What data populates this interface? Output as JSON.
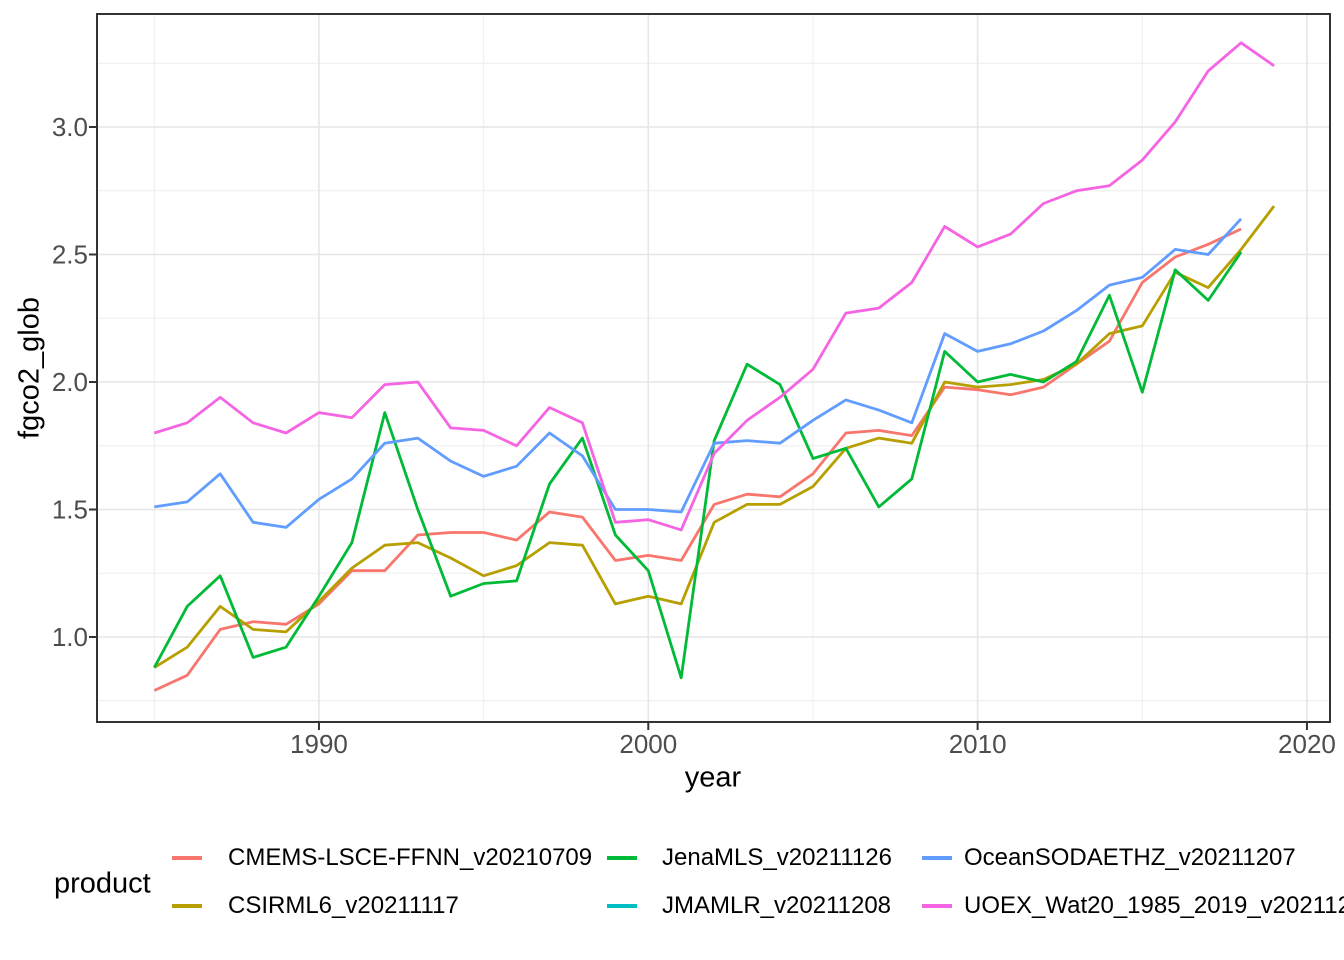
{
  "chart_data": {
    "type": "line",
    "title": "",
    "xlabel": "year",
    "ylabel": "fgco2_glob",
    "x_ticks": [
      1990,
      2000,
      2010,
      2020
    ],
    "x_tick_labels": [
      "1990",
      "2000",
      "2010",
      "2020"
    ],
    "x_minor_gridlines": [
      1985,
      1995,
      2005,
      2015
    ],
    "y_ticks": [
      1.0,
      1.5,
      2.0,
      2.5,
      3.0
    ],
    "y_tick_labels": [
      "1.0",
      "1.5",
      "2.0",
      "2.5",
      "3.0"
    ],
    "y_minor_gridlines": [
      0.75,
      1.25,
      1.75,
      2.25,
      2.75,
      3.25
    ],
    "x_range_years": [
      1983.8,
      2020.7
    ],
    "y_range": [
      0.69,
      3.45
    ],
    "grid": true,
    "legend": {
      "title": "product",
      "position": "bottom"
    },
    "start_year": 1985,
    "series": [
      {
        "name": "CMEMS-LSCE-FFNN_v20210709",
        "color": "#F8766D",
        "start_year": 1985,
        "values": [
          0.79,
          0.85,
          1.03,
          1.06,
          1.05,
          1.13,
          1.26,
          1.26,
          1.4,
          1.41,
          1.41,
          1.38,
          1.49,
          1.47,
          1.3,
          1.32,
          1.3,
          1.52,
          1.56,
          1.55,
          1.64,
          1.8,
          1.81,
          1.79,
          1.98,
          1.97,
          1.95,
          1.98,
          2.07,
          2.16,
          2.39,
          2.49,
          2.54,
          2.6
        ]
      },
      {
        "name": "CSIRML6_v20211117",
        "color": "#B79F00",
        "start_year": 1985,
        "values": [
          0.88,
          0.96,
          1.12,
          1.03,
          1.02,
          1.14,
          1.27,
          1.36,
          1.37,
          1.31,
          1.24,
          1.28,
          1.37,
          1.36,
          1.13,
          1.16,
          1.13,
          1.45,
          1.52,
          1.52,
          1.59,
          1.74,
          1.78,
          1.76,
          2.0,
          1.98,
          1.99,
          2.01,
          2.07,
          2.19,
          2.22,
          2.43,
          2.37,
          2.52,
          2.69
        ]
      },
      {
        "name": "JenaMLS_v20211126",
        "color": "#00BA38",
        "start_year": 1985,
        "values": [
          0.88,
          1.12,
          1.24,
          0.92,
          0.96,
          1.16,
          1.37,
          1.88,
          1.5,
          1.16,
          1.21,
          1.22,
          1.6,
          1.78,
          1.4,
          1.26,
          0.84,
          1.77,
          2.07,
          1.99,
          1.7,
          1.74,
          1.51,
          1.62,
          2.12,
          2.0,
          2.03,
          2.0,
          2.08,
          2.34,
          1.96,
          2.44,
          2.32,
          2.51
        ]
      },
      {
        "name": "JMAMLR_v20211208",
        "color": "#00BFC4",
        "start_year": 1985,
        "values": [],
        "visible_in_plot": false
      },
      {
        "name": "OceanSODAETHZ_v20211207",
        "color": "#619CFF",
        "start_year": 1985,
        "values": [
          1.51,
          1.53,
          1.64,
          1.45,
          1.43,
          1.54,
          1.62,
          1.76,
          1.78,
          1.69,
          1.63,
          1.67,
          1.8,
          1.71,
          1.5,
          1.5,
          1.49,
          1.76,
          1.77,
          1.76,
          1.85,
          1.93,
          1.89,
          1.84,
          2.19,
          2.12,
          2.15,
          2.2,
          2.28,
          2.38,
          2.41,
          2.52,
          2.5,
          2.64
        ]
      },
      {
        "name": "UOEX_Wat20_1985_2019_v202112",
        "color": "#F564E3",
        "start_year": 1985,
        "values": [
          1.8,
          1.84,
          1.94,
          1.84,
          1.8,
          1.88,
          1.86,
          1.99,
          2.0,
          1.82,
          1.81,
          1.75,
          1.9,
          1.84,
          1.45,
          1.46,
          1.42,
          1.72,
          1.85,
          1.94,
          2.05,
          2.27,
          2.29,
          2.39,
          2.61,
          2.53,
          2.58,
          2.7,
          2.75,
          2.77,
          2.87,
          3.02,
          3.22,
          3.33,
          3.24
        ]
      }
    ]
  }
}
